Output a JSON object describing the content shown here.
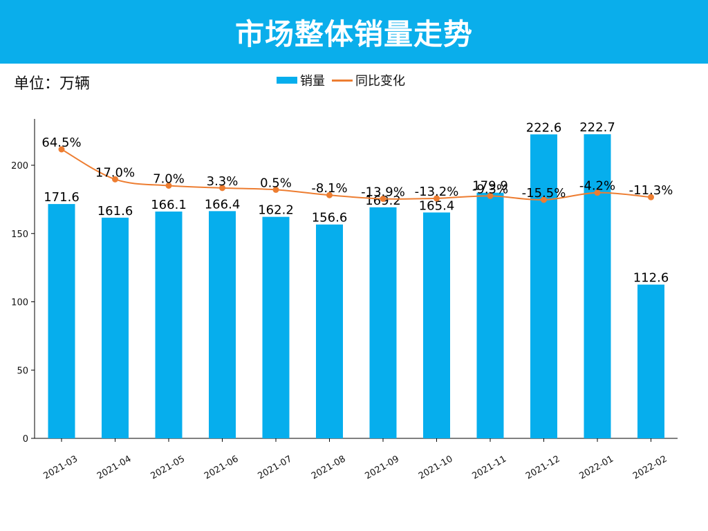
{
  "header": {
    "title": "市场整体销量走势",
    "background_color": "#0aaeeb"
  },
  "unit_label": "单位：万辆",
  "legend": {
    "items": [
      {
        "label": "销量",
        "type": "bar",
        "color": "#06aeed"
      },
      {
        "label": "同比变化",
        "type": "line",
        "color": "#ed7d31"
      }
    ],
    "placement": "top-center"
  },
  "chart_data": {
    "type": "bar+line",
    "title": "市场整体销量走势",
    "xlabel": "",
    "ylabel": "",
    "categories": [
      "2021-03",
      "2021-04",
      "2021-05",
      "2021-06",
      "2021-07",
      "2021-08",
      "2021-09",
      "2021-10",
      "2021-11",
      "2021-12",
      "2022-01",
      "2022-02"
    ],
    "series": [
      {
        "name": "销量",
        "type": "bar",
        "color": "#06aeed",
        "values": [
          171.6,
          161.6,
          166.1,
          166.4,
          162.2,
          156.6,
          169.2,
          165.4,
          179.9,
          222.6,
          222.7,
          112.6
        ],
        "labels": [
          "171.6",
          "161.6",
          "166.1",
          "166.4",
          "162.2",
          "156.6",
          "169.2",
          "165.4",
          "179.9",
          "222.6",
          "222.7",
          "112.6"
        ]
      },
      {
        "name": "同比变化",
        "type": "line",
        "color": "#ed7d31",
        "smooth": true,
        "secondary_axis_hidden": true,
        "values": [
          64.5,
          17.0,
          7.0,
          3.3,
          0.5,
          -8.1,
          -13.9,
          -13.2,
          -9.3,
          -15.5,
          -4.2,
          -11.3
        ],
        "labels": [
          "64.5%",
          "17.0%",
          "7.0%",
          "3.3%",
          "0.5%",
          "-8.1%",
          "-13.9%",
          "-13.2%",
          "-9.3%",
          "-15.5%",
          "-4.2%",
          "-11.3%"
        ]
      }
    ],
    "ylim": [
      0,
      235
    ],
    "yticks": [
      0,
      50,
      100,
      150,
      200
    ],
    "ytick_labels": [
      "0",
      "50",
      "100",
      "150",
      "200"
    ],
    "x_tick_rotation_deg": 30,
    "grid": false
  }
}
